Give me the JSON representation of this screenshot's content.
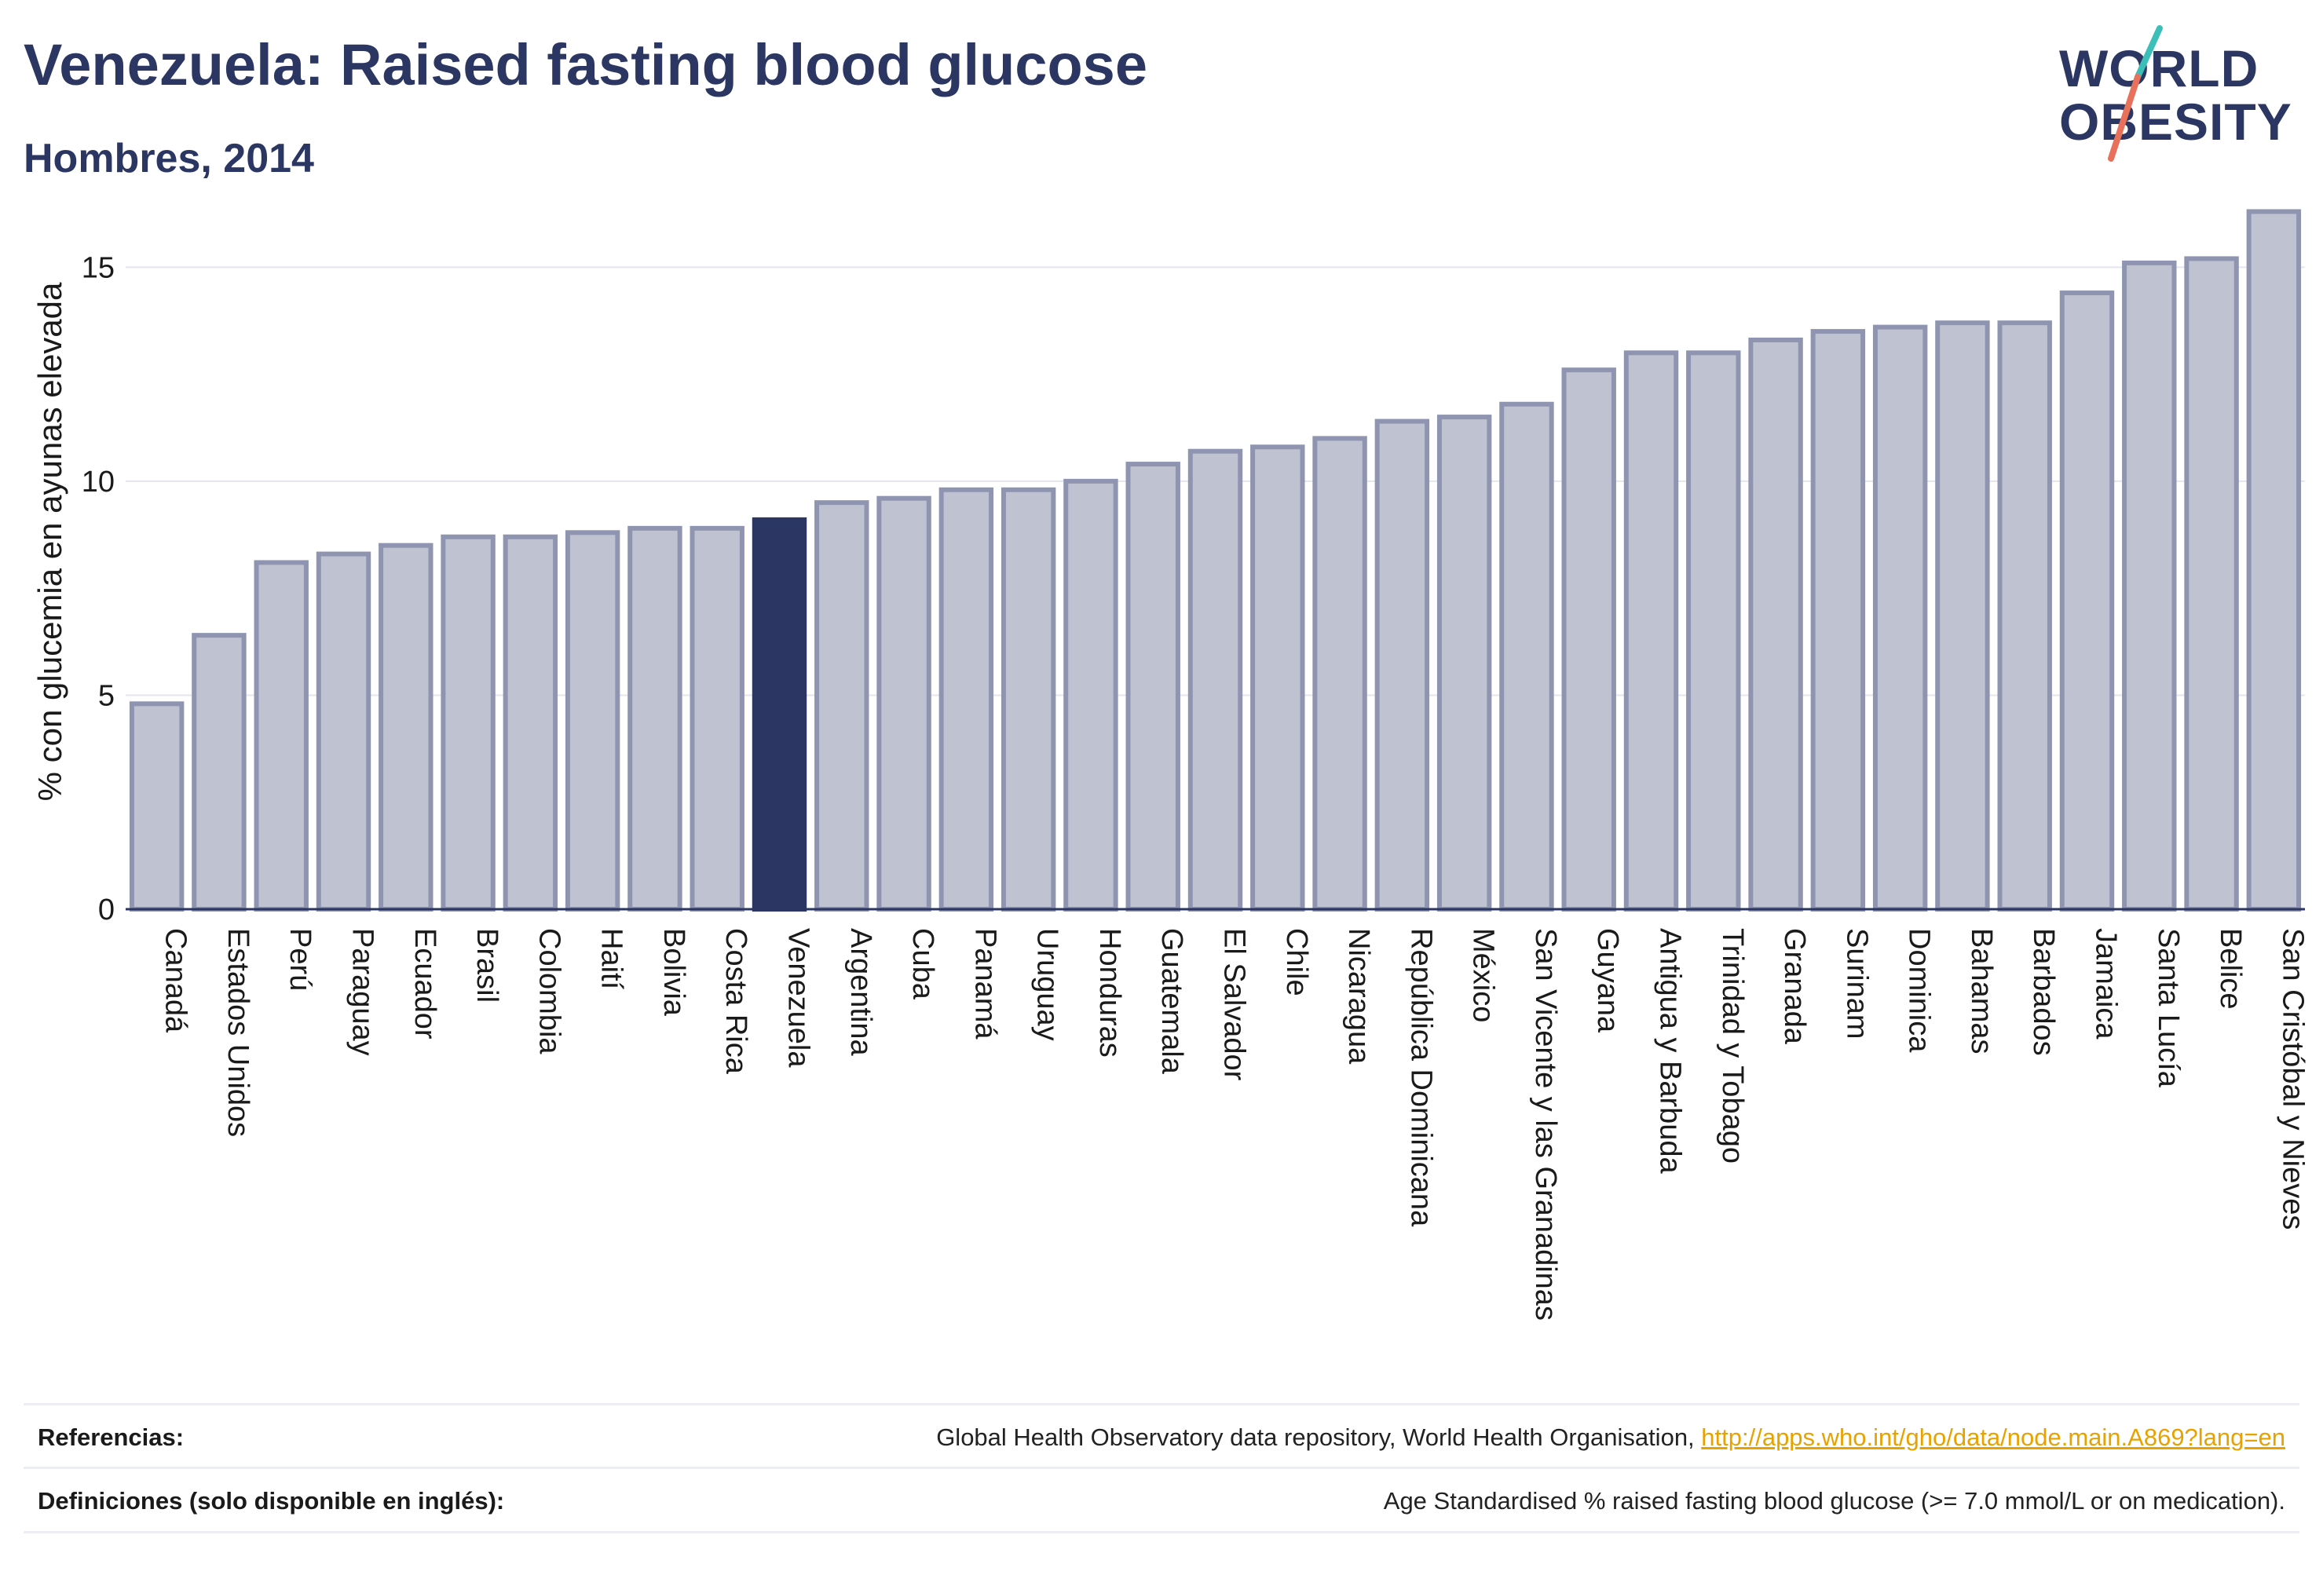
{
  "header": {
    "title": "Venezuela: Raised fasting blood glucose",
    "subtitle": "Hombres, 2014"
  },
  "logo": {
    "line1": "WORLD",
    "line2": "OBESITY",
    "colors": {
      "text": "#2b3663",
      "teal": "#3bbfb8",
      "coral": "#e8715c"
    }
  },
  "footer": {
    "references_label": "Referencias:",
    "references_text": "Global Health Observatory data repository, World Health Organisation, ",
    "references_link": "http://apps.who.int/gho/data/node.main.A869?lang=en",
    "definitions_label": "Definiciones (solo disponible en inglés):",
    "definitions_text": "Age Standardised % raised fasting blood glucose (>= 7.0 mmol/L or on medication)."
  },
  "chart_data": {
    "type": "bar",
    "title": "Venezuela: Raised fasting blood glucose",
    "subtitle": "Hombres, 2014",
    "xlabel": "",
    "ylabel": "% con glucemia en ayunas elevada",
    "ylim": [
      0,
      16.4
    ],
    "yticks": [
      0,
      5,
      10,
      15
    ],
    "grid": true,
    "highlight": "Venezuela",
    "colors": {
      "bar": "#bfc2d0",
      "bar_edge": "#8f95b0",
      "highlight": "#2b3663",
      "axis": "#2b3663",
      "grid": "#e4e6ee"
    },
    "categories": [
      "Canadá",
      "Estados Unidos",
      "Perú",
      "Paraguay",
      "Ecuador",
      "Brasil",
      "Colombia",
      "Haití",
      "Bolivia",
      "Costa Rica",
      "Venezuela",
      "Argentina",
      "Cuba",
      "Panamá",
      "Uruguay",
      "Honduras",
      "Guatemala",
      "El Salvador",
      "Chile",
      "Nicaragua",
      "República Dominicana",
      "México",
      "San Vicente y las Granadinas",
      "Guyana",
      "Antigua y Barbuda",
      "Trinidad y Tobago",
      "Granada",
      "Surinam",
      "Dominica",
      "Bahamas",
      "Barbados",
      "Jamaica",
      "Santa Lucía",
      "Belice",
      "San Cristóbal y Nieves"
    ],
    "values": [
      4.8,
      6.4,
      8.1,
      8.3,
      8.5,
      8.7,
      8.7,
      8.8,
      8.9,
      8.9,
      9.1,
      9.5,
      9.6,
      9.8,
      9.8,
      10.0,
      10.4,
      10.7,
      10.8,
      11.0,
      11.4,
      11.5,
      11.8,
      12.6,
      13.0,
      13.0,
      13.3,
      13.5,
      13.6,
      13.7,
      13.7,
      14.4,
      15.1,
      15.2,
      16.3
    ]
  }
}
